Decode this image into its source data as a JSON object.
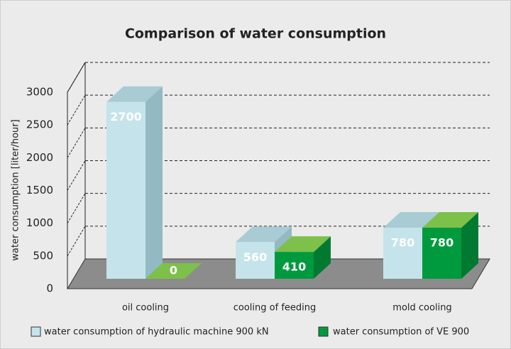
{
  "chart_data": {
    "type": "bar",
    "title": "Comparison of water consumption",
    "y_label": "water consumption [liter/hour]",
    "categories": [
      "oil cooling",
      "cooling of feeding",
      "mold cooling"
    ],
    "series": [
      {
        "name": "water consumption of hydraulic machine 900 kN",
        "color": "#c5e3ea",
        "values": [
          2700,
          560,
          780
        ]
      },
      {
        "name": "water consumption of VE 900",
        "color": "#009a3e",
        "values": [
          0,
          410,
          780
        ]
      }
    ],
    "ylim": [
      0,
      3000
    ],
    "yticks": [
      0,
      500,
      1000,
      1500,
      2000,
      2500,
      3000
    ],
    "grid": true
  }
}
